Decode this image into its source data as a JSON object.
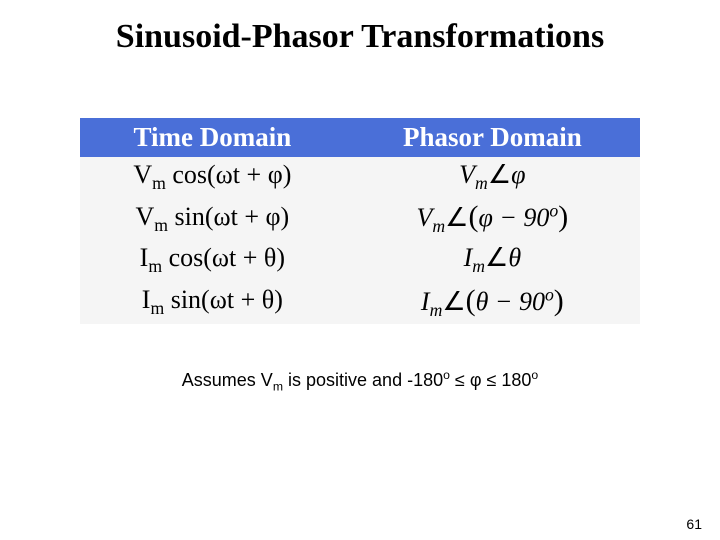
{
  "title": "Sinusoid-Phasor Transformations",
  "headers": {
    "left": "Time Domain",
    "right": "Phasor Domain"
  },
  "rows": [
    {
      "time": {
        "mag": "V",
        "magsub": "m",
        "fn": " cos(",
        "arg1": "ω",
        "arg2": "t + ",
        "phase": "φ",
        "close": ")"
      },
      "phasor": {
        "mag": "V",
        "magsub": "m",
        "angle": "∠",
        "open": "",
        "expr": "φ",
        "close": "",
        "deg": ""
      }
    },
    {
      "time": {
        "mag": "V",
        "magsub": "m",
        "fn": " sin(",
        "arg1": "ω",
        "arg2": "t + ",
        "phase": "φ",
        "close": ")"
      },
      "phasor": {
        "mag": "V",
        "magsub": "m",
        "angle": "∠",
        "open": "(",
        "expr": "φ − 90",
        "close": ")",
        "deg": "o"
      }
    },
    {
      "time": {
        "mag": "I",
        "magsub": "m",
        "fn": " cos(",
        "arg1": "ω",
        "arg2": "t + ",
        "phase": "θ",
        "close": ")"
      },
      "phasor": {
        "mag": "I",
        "magsub": "m",
        "angle": "∠",
        "open": "",
        "expr": "θ",
        "close": "",
        "deg": ""
      }
    },
    {
      "time": {
        "mag": "I",
        "magsub": "m",
        "fn": " sin(",
        "arg1": "ω",
        "arg2": "t + ",
        "phase": "θ",
        "close": ")"
      },
      "phasor": {
        "mag": "I",
        "magsub": "m",
        "angle": "∠",
        "open": "(",
        "expr": "θ − 90",
        "close": ")",
        "deg": "o"
      }
    }
  ],
  "footnote": {
    "pre": "Assumes V",
    "sub": "m",
    "mid": " is positive and -180",
    "deg1": "o",
    "le1": " ≤ ",
    "phi": "φ",
    "le2": " ≤ 180",
    "deg2": "o"
  },
  "pagenum": "61",
  "colors": {
    "header_bg": "#4a6fd8",
    "header_fg": "#ffffff",
    "cell_bg": "#f5f5f5",
    "page_bg": "#ffffff"
  }
}
